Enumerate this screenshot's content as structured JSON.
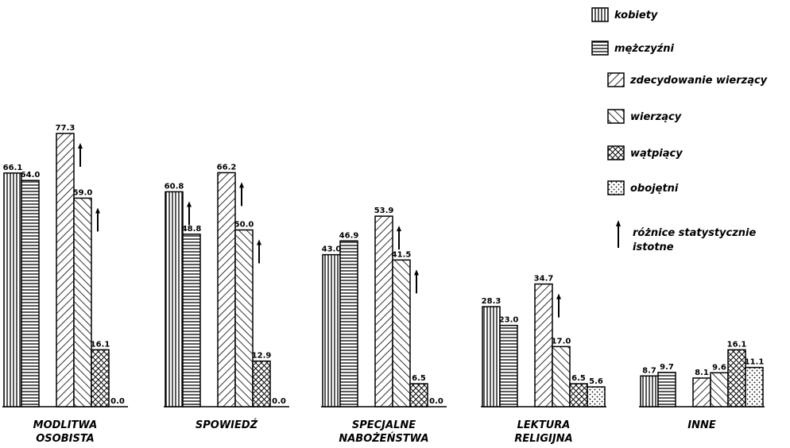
{
  "chart_data": {
    "type": "bar",
    "title": "",
    "xlabel": "",
    "ylabel": "",
    "ylim": [
      0,
      80
    ],
    "grid": false,
    "legend_position": "top-right",
    "categories": [
      [
        "MODLITWA",
        "OSOBISTA"
      ],
      [
        "SPOWIEDŹ"
      ],
      [
        "SPECJALNE",
        "NABOŻEŃSTWA"
      ],
      [
        "LEKTURA",
        "RELIGIJNA"
      ],
      [
        "INNE"
      ]
    ],
    "series": [
      {
        "name": "kobiety",
        "pattern": "vertical",
        "group": 0,
        "values": [
          66.1,
          60.8,
          43.0,
          28.3,
          8.7
        ],
        "labels": [
          "66.1",
          "60.8",
          "43.0",
          "28.3",
          "8.7"
        ]
      },
      {
        "name": "mężczyźni",
        "pattern": "horizontal",
        "group": 0,
        "values": [
          64.0,
          48.8,
          46.9,
          23.0,
          9.7
        ],
        "labels": [
          "64.0",
          "48.8",
          "46.9",
          "23.0",
          "9.7"
        ]
      },
      {
        "name": "zdecydowanie wierzący",
        "pattern": "diag-right",
        "group": 1,
        "values": [
          77.3,
          66.2,
          53.9,
          34.7,
          8.1
        ],
        "labels": [
          "77.3",
          "66.2",
          "53.9",
          "34.7",
          "8.1"
        ]
      },
      {
        "name": "wierzący",
        "pattern": "diag-left",
        "group": 1,
        "values": [
          59.0,
          50.0,
          41.5,
          17.0,
          9.6
        ],
        "labels": [
          "59.0",
          "50.0",
          "41.5",
          "17.0",
          "9.6"
        ]
      },
      {
        "name": "wątpiący",
        "pattern": "crosshatch",
        "group": 1,
        "values": [
          16.1,
          12.9,
          6.5,
          6.5,
          16.1
        ],
        "labels": [
          "16.1",
          "12.9",
          "6.5",
          "6.5",
          "16.1"
        ]
      },
      {
        "name": "obojętni",
        "pattern": "dots",
        "group": 1,
        "values": [
          0.0,
          0.0,
          0.0,
          5.6,
          11.1
        ],
        "labels": [
          "0.0",
          "0.0",
          "0.0",
          "5.6",
          "11.1"
        ]
      }
    ],
    "significance_arrows": [
      {
        "category": 0,
        "series": 2
      },
      {
        "category": 0,
        "series": 3
      },
      {
        "category": 1,
        "series": 0
      },
      {
        "category": 1,
        "series": 2
      },
      {
        "category": 1,
        "series": 3
      },
      {
        "category": 2,
        "series": 2
      },
      {
        "category": 2,
        "series": 3
      },
      {
        "category": 3,
        "series": 2
      }
    ],
    "arrow_note": [
      "różnice statystycznie",
      "istotne"
    ]
  }
}
